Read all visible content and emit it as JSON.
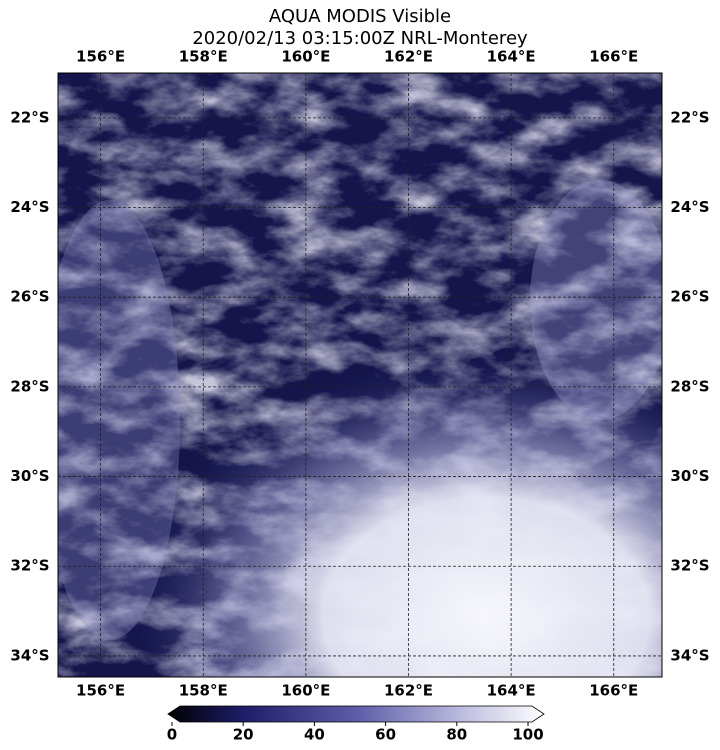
{
  "title": [
    "AQUA MODIS Visible",
    "2020/02/13 03:15:00Z NRL-Monterey"
  ],
  "map": {
    "lon_range": [
      155.17,
      166.94
    ],
    "lat_range": [
      -21.0,
      -34.47
    ],
    "lon_ticks": [
      {
        "value": 156,
        "label": "156°E"
      },
      {
        "value": 158,
        "label": "158°E"
      },
      {
        "value": 160,
        "label": "160°E"
      },
      {
        "value": 162,
        "label": "162°E"
      },
      {
        "value": 164,
        "label": "164°E"
      },
      {
        "value": 166,
        "label": "166°E"
      }
    ],
    "lat_ticks": [
      {
        "value": -22,
        "label": "22°S"
      },
      {
        "value": -24,
        "label": "24°S"
      },
      {
        "value": -26,
        "label": "26°S"
      },
      {
        "value": -28,
        "label": "28°S"
      },
      {
        "value": -30,
        "label": "30°S"
      },
      {
        "value": -32,
        "label": "32°S"
      },
      {
        "value": -34,
        "label": "34°S"
      }
    ]
  },
  "colorbar": {
    "range": [
      0,
      100
    ],
    "ticks": [
      0,
      20,
      40,
      60,
      80,
      100
    ]
  }
}
